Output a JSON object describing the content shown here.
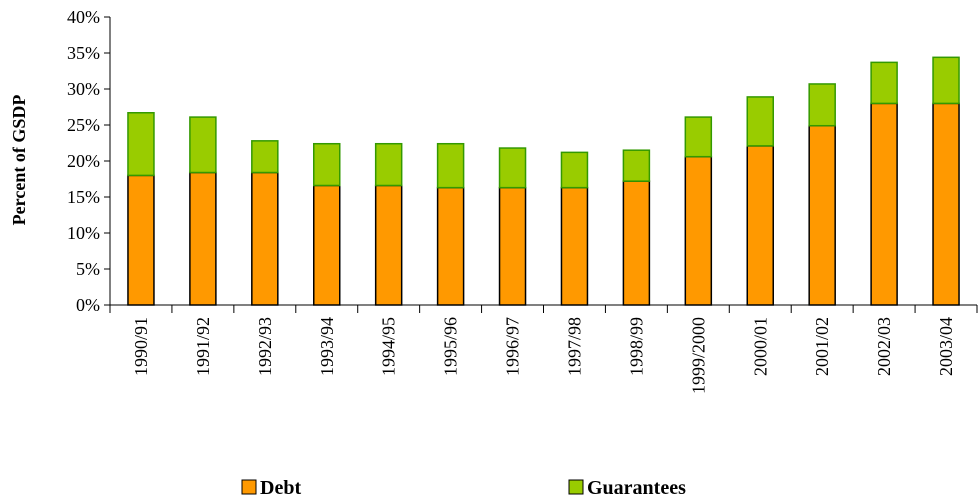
{
  "chart_data": {
    "type": "bar",
    "stacked": true,
    "categories": [
      "1990/91",
      "1991/92",
      "1992/93",
      "1993/94",
      "1994/95",
      "1995/96",
      "1996/97",
      "1997/98",
      "1998/99",
      "1999/2000",
      "2000/01",
      "2001/02",
      "2002/03",
      "2003/04"
    ],
    "series": [
      {
        "name": "Debt",
        "color": "#FF9900",
        "values": [
          18.0,
          18.4,
          18.4,
          16.6,
          16.6,
          16.3,
          16.3,
          16.3,
          17.2,
          20.6,
          22.1,
          24.9,
          28.0,
          28.0
        ]
      },
      {
        "name": "Guarantees",
        "color": "#99CC00",
        "values": [
          8.7,
          7.7,
          4.4,
          5.8,
          5.8,
          6.1,
          5.5,
          4.9,
          4.3,
          5.5,
          6.8,
          5.8,
          5.7,
          6.4
        ]
      }
    ],
    "ylabel": "Percent of GSDP",
    "ylim": [
      0,
      40
    ],
    "yticks": [
      "0%",
      "5%",
      "10%",
      "15%",
      "20%",
      "25%",
      "30%",
      "35%",
      "40%"
    ],
    "grid": false,
    "legend_position": "bottom"
  }
}
